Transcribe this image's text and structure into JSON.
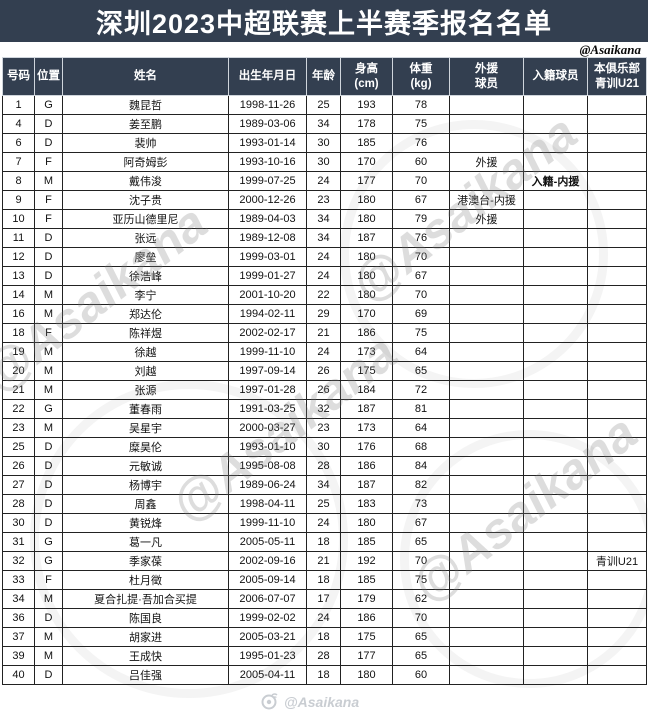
{
  "title": "深圳2023中超联赛上半赛季报名名单",
  "watermarks": {
    "top_right": "@Asaikana",
    "diagonal": "@Asaikana",
    "bottom": "@Asaikana"
  },
  "colors": {
    "navy": "#333F50",
    "badge_blue": "#2176CD",
    "badge_pink": "#FF85E8",
    "badge_red": "#C00000",
    "badge_red_text": "#FFEB00",
    "badge_yellow": "#FFFF00"
  },
  "table": {
    "headers": [
      {
        "id": "number",
        "lines": [
          "号码"
        ]
      },
      {
        "id": "position",
        "lines": [
          "位置"
        ]
      },
      {
        "id": "name",
        "lines": [
          "姓名"
        ]
      },
      {
        "id": "dob",
        "lines": [
          "出生年月日"
        ]
      },
      {
        "id": "age",
        "lines": [
          "年龄"
        ]
      },
      {
        "id": "height",
        "lines": [
          "身高",
          "(cm)"
        ]
      },
      {
        "id": "weight",
        "lines": [
          "体重",
          "(kg)"
        ]
      },
      {
        "id": "foreign",
        "lines": [
          "外援",
          "球员"
        ]
      },
      {
        "id": "naturalized",
        "lines": [
          "入籍球员"
        ]
      },
      {
        "id": "youth",
        "lines": [
          "本俱乐部",
          "青训U21"
        ]
      }
    ],
    "rows": [
      {
        "no": "1",
        "pos": "G",
        "name": "魏昆哲",
        "dob": "1998-11-26",
        "age": "25",
        "height": "193",
        "weight": "78"
      },
      {
        "no": "4",
        "pos": "D",
        "name": "姜至鹏",
        "dob": "1989-03-06",
        "age": "34",
        "height": "178",
        "weight": "75"
      },
      {
        "no": "6",
        "pos": "D",
        "name": "裴帅",
        "dob": "1993-01-14",
        "age": "30",
        "height": "185",
        "weight": "76"
      },
      {
        "no": "7",
        "pos": "F",
        "name": "阿奇姆彭",
        "dob": "1993-10-16",
        "age": "30",
        "height": "170",
        "weight": "60",
        "foreign": {
          "text": "外援",
          "style": "blue"
        }
      },
      {
        "no": "8",
        "pos": "M",
        "name": "戴伟浚",
        "dob": "1999-07-25",
        "age": "24",
        "height": "177",
        "weight": "70",
        "naturalized": {
          "text": "入籍-内援",
          "style": "red"
        }
      },
      {
        "no": "9",
        "pos": "F",
        "name": "沈子贵",
        "dob": "2000-12-26",
        "age": "23",
        "height": "180",
        "weight": "67",
        "foreign": {
          "text": "港澳台-内援",
          "style": "pink"
        }
      },
      {
        "no": "10",
        "pos": "F",
        "name": "亚历山德里尼",
        "dob": "1989-04-03",
        "age": "34",
        "height": "180",
        "weight": "79",
        "foreign": {
          "text": "外援",
          "style": "blue"
        }
      },
      {
        "no": "11",
        "pos": "D",
        "name": "张远",
        "dob": "1989-12-08",
        "age": "34",
        "height": "187",
        "weight": "76"
      },
      {
        "no": "12",
        "pos": "D",
        "name": "廖垒",
        "dob": "1999-03-01",
        "age": "24",
        "height": "180",
        "weight": "70"
      },
      {
        "no": "13",
        "pos": "D",
        "name": "徐浩峰",
        "dob": "1999-01-27",
        "age": "24",
        "height": "180",
        "weight": "67"
      },
      {
        "no": "14",
        "pos": "M",
        "name": "李宁",
        "dob": "2001-10-20",
        "age": "22",
        "height": "180",
        "weight": "70"
      },
      {
        "no": "16",
        "pos": "M",
        "name": "郑达伦",
        "dob": "1994-02-11",
        "age": "29",
        "height": "170",
        "weight": "69"
      },
      {
        "no": "18",
        "pos": "F",
        "name": "陈祥煜",
        "dob": "2002-02-17",
        "age": "21",
        "height": "186",
        "weight": "75"
      },
      {
        "no": "19",
        "pos": "M",
        "name": "徐越",
        "dob": "1999-11-10",
        "age": "24",
        "height": "173",
        "weight": "64"
      },
      {
        "no": "20",
        "pos": "M",
        "name": "刘越",
        "dob": "1997-09-14",
        "age": "26",
        "height": "175",
        "weight": "65"
      },
      {
        "no": "21",
        "pos": "M",
        "name": "张源",
        "dob": "1997-01-28",
        "age": "26",
        "height": "184",
        "weight": "72"
      },
      {
        "no": "22",
        "pos": "G",
        "name": "董春雨",
        "dob": "1991-03-25",
        "age": "32",
        "height": "187",
        "weight": "81"
      },
      {
        "no": "23",
        "pos": "M",
        "name": "吴星宇",
        "dob": "2000-03-27",
        "age": "23",
        "height": "173",
        "weight": "64"
      },
      {
        "no": "25",
        "pos": "D",
        "name": "糜昊伦",
        "dob": "1993-01-10",
        "age": "30",
        "height": "176",
        "weight": "68"
      },
      {
        "no": "26",
        "pos": "D",
        "name": "元敏诚",
        "dob": "1995-08-08",
        "age": "28",
        "height": "186",
        "weight": "84"
      },
      {
        "no": "27",
        "pos": "D",
        "name": "杨博宇",
        "dob": "1989-06-24",
        "age": "34",
        "height": "187",
        "weight": "82"
      },
      {
        "no": "28",
        "pos": "D",
        "name": "周鑫",
        "dob": "1998-04-11",
        "age": "25",
        "height": "183",
        "weight": "73"
      },
      {
        "no": "30",
        "pos": "D",
        "name": "黄锐烽",
        "dob": "1999-11-10",
        "age": "24",
        "height": "180",
        "weight": "67"
      },
      {
        "no": "31",
        "pos": "G",
        "name": "葛一凡",
        "dob": "2005-05-11",
        "age": "18",
        "height": "185",
        "weight": "65"
      },
      {
        "no": "32",
        "pos": "G",
        "name": "季家葆",
        "dob": "2002-09-16",
        "age": "21",
        "height": "192",
        "weight": "70",
        "youth": {
          "text": "青训U21",
          "style": "yellow"
        }
      },
      {
        "no": "33",
        "pos": "F",
        "name": "杜月徵",
        "dob": "2005-09-14",
        "age": "18",
        "height": "185",
        "weight": "75"
      },
      {
        "no": "34",
        "pos": "M",
        "name": "夏合扎提·吾加合买提",
        "dob": "2006-07-07",
        "age": "17",
        "height": "179",
        "weight": "62"
      },
      {
        "no": "36",
        "pos": "D",
        "name": "陈国良",
        "dob": "1999-02-02",
        "age": "24",
        "height": "186",
        "weight": "70"
      },
      {
        "no": "37",
        "pos": "M",
        "name": "胡家进",
        "dob": "2005-03-21",
        "age": "18",
        "height": "175",
        "weight": "65"
      },
      {
        "no": "39",
        "pos": "M",
        "name": "王成快",
        "dob": "1995-01-23",
        "age": "28",
        "height": "177",
        "weight": "65"
      },
      {
        "no": "40",
        "pos": "D",
        "name": "吕佳强",
        "dob": "2005-04-11",
        "age": "18",
        "height": "180",
        "weight": "60"
      }
    ]
  }
}
